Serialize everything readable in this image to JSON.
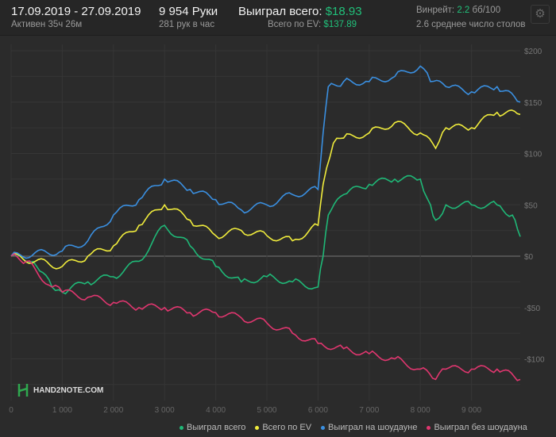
{
  "header": {
    "date_range": "17.09.2019 - 27.09.2019",
    "active": "Активен 35ч 26м",
    "hands": "9 954 Руки",
    "hands_per_hour": "281 рук в час",
    "won_label": "Выиграл всего:",
    "won_value": "$18.93",
    "ev_label": "Всего по EV:",
    "ev_value": "$137.89",
    "winrate_label": "Винрейт:",
    "winrate_value": "2.2",
    "winrate_unit": "бб/100",
    "tables": "2.6 среднее число столов",
    "settings_icon": "gear-icon"
  },
  "logo": {
    "text": "HAND2NOTE.COM"
  },
  "chart_data": {
    "type": "line",
    "xlim": [
      0,
      9954
    ],
    "ylim": [
      -125,
      210
    ],
    "x_ticks": [
      {
        "v": 0,
        "l": "0"
      },
      {
        "v": 1000,
        "l": "1 000"
      },
      {
        "v": 2000,
        "l": "2 000"
      },
      {
        "v": 3000,
        "l": "3 000"
      },
      {
        "v": 4000,
        "l": "4 000"
      },
      {
        "v": 5000,
        "l": "5 000"
      },
      {
        "v": 6000,
        "l": "6 000"
      },
      {
        "v": 7000,
        "l": "7 000"
      },
      {
        "v": 8000,
        "l": "8 000"
      },
      {
        "v": 9000,
        "l": "9 000"
      }
    ],
    "y_ticks": [
      {
        "v": 200,
        "l": "$200"
      },
      {
        "v": 150,
        "l": "$150"
      },
      {
        "v": 100,
        "l": "$100"
      },
      {
        "v": 50,
        "l": "$50"
      },
      {
        "v": 0,
        "l": "$0"
      },
      {
        "v": -50,
        "l": "-$50"
      },
      {
        "v": -100,
        "l": "-$100"
      }
    ],
    "grid": true,
    "legend_position": "bottom",
    "series": [
      {
        "name": "Выиграл всего",
        "color": "#1fb877",
        "x": [
          0,
          300,
          500,
          800,
          1000,
          1500,
          2000,
          2500,
          3000,
          3500,
          4000,
          4500,
          5000,
          5500,
          6000,
          6100,
          6200,
          6500,
          7000,
          7500,
          8000,
          8200,
          8300,
          8500,
          9000,
          9500,
          9800,
          9954
        ],
        "y": [
          0,
          -5,
          -10,
          -30,
          -35,
          -25,
          -20,
          -5,
          30,
          10,
          -10,
          -25,
          -20,
          -25,
          -30,
          0,
          40,
          60,
          70,
          75,
          75,
          50,
          35,
          50,
          50,
          50,
          40,
          19
        ]
      },
      {
        "name": "Всего по EV",
        "color": "#f0ec3c",
        "x": [
          0,
          1000,
          1500,
          2000,
          2500,
          3000,
          3500,
          4000,
          4500,
          5000,
          5500,
          6000,
          6100,
          6300,
          6500,
          7000,
          7500,
          8000,
          8300,
          8500,
          9000,
          9500,
          9954
        ],
        "y": [
          0,
          -10,
          0,
          10,
          30,
          50,
          35,
          20,
          25,
          20,
          15,
          30,
          70,
          110,
          115,
          120,
          130,
          120,
          105,
          125,
          125,
          140,
          138
        ]
      },
      {
        "name": "Выиграл на шоудауне",
        "color": "#3a8fe0",
        "x": [
          0,
          1000,
          1500,
          2000,
          2500,
          3000,
          3500,
          4000,
          4500,
          5000,
          5500,
          6000,
          6100,
          6200,
          6500,
          7000,
          7500,
          8000,
          8200,
          8500,
          9000,
          9500,
          9954
        ],
        "y": [
          0,
          5,
          15,
          40,
          55,
          75,
          65,
          55,
          45,
          50,
          60,
          65,
          120,
          165,
          170,
          170,
          175,
          185,
          170,
          165,
          160,
          165,
          150
        ]
      },
      {
        "name": "Выиграл без шоудауна",
        "color": "#e0366f",
        "x": [
          0,
          300,
          800,
          1000,
          1500,
          2000,
          2500,
          3000,
          3500,
          4000,
          4500,
          5000,
          5500,
          6000,
          6500,
          7000,
          7500,
          8000,
          8300,
          8500,
          9000,
          9500,
          9954
        ],
        "y": [
          0,
          -5,
          -30,
          -35,
          -40,
          -45,
          -50,
          -50,
          -55,
          -55,
          -60,
          -65,
          -75,
          -85,
          -90,
          -95,
          -100,
          -110,
          -120,
          -110,
          -110,
          -110,
          -120
        ]
      }
    ]
  }
}
